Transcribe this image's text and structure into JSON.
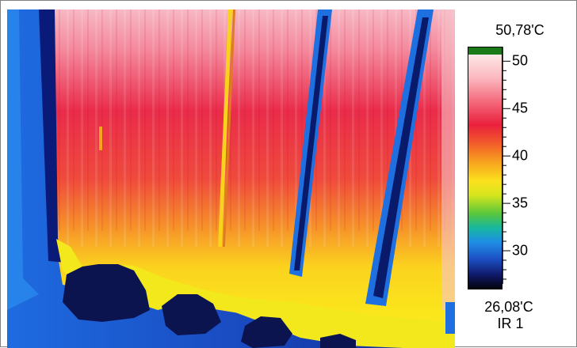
{
  "scale": {
    "max_label": "50,78'C",
    "min_label": "26,08'C",
    "sensor_label": "IR 1",
    "ticks": [
      {
        "label": "50",
        "value": 50
      },
      {
        "label": "45",
        "value": 45
      },
      {
        "label": "40",
        "value": 40
      },
      {
        "label": "35",
        "value": 35
      },
      {
        "label": "30",
        "value": 30
      }
    ],
    "range_min": 26.08,
    "range_max": 50.78
  },
  "colors": {
    "hot": "#e9203d",
    "warm": "#fbe11e",
    "cold": "#101a6a",
    "frame_blue": "#1d52c7",
    "overrange": "#1a7a18"
  }
}
